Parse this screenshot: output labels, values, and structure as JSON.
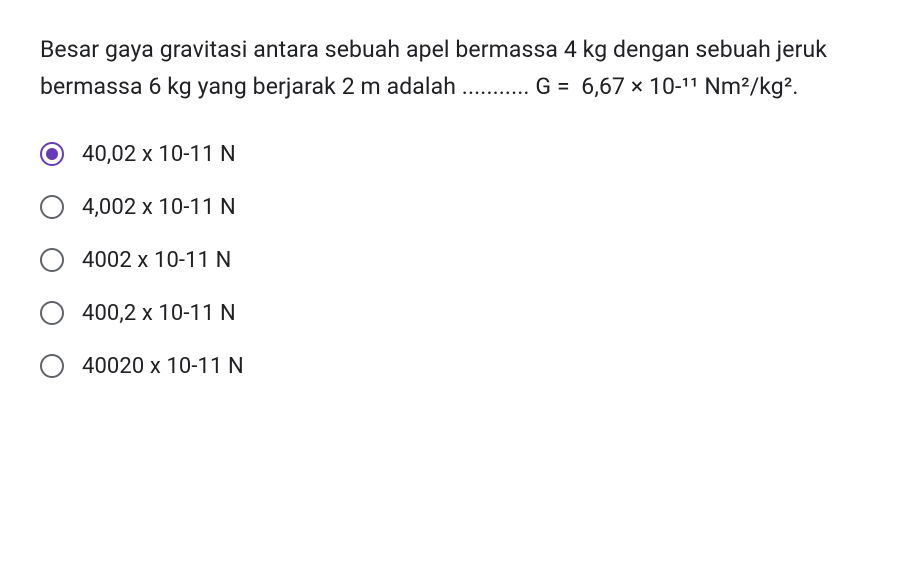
{
  "question": "Besar gaya gravitasi antara sebuah apel bermassa 4 kg dengan sebuah jeruk bermassa 6 kg yang berjarak 2 m adalah ........... G =  6,67 × 10-¹¹ Nm²/kg².",
  "options": [
    {
      "label": "40,02 x 10-11 N",
      "selected": true
    },
    {
      "label": "4,002 x 10-11 N",
      "selected": false
    },
    {
      "label": "4002 x 10-11 N",
      "selected": false
    },
    {
      "label": "400,2 x 10-11 N",
      "selected": false
    },
    {
      "label": "40020 x 10-11 N",
      "selected": false
    }
  ],
  "colors": {
    "text": "#202124",
    "radio_unselected": "#5f6368",
    "radio_selected": "#673ab7",
    "background": "#ffffff"
  }
}
